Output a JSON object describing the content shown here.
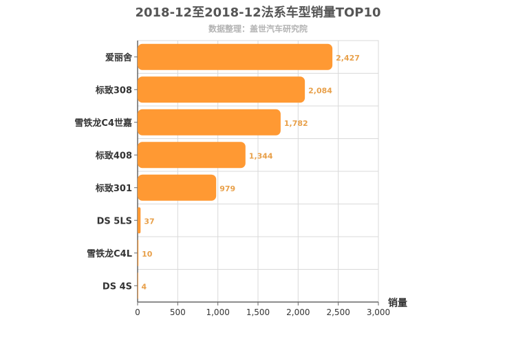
{
  "chart_data": {
    "type": "bar",
    "orientation": "horizontal",
    "title": "2018-12至2018-12法系车型销量TOP10",
    "subtitle": "数据整理：盖世汽车研究院",
    "xlabel": "销量",
    "ylabel": "",
    "categories": [
      "爱丽舍",
      "标致308",
      "雪铁龙C4世嘉",
      "标致408",
      "标致301",
      "DS 5LS",
      "雪铁龙C4L",
      "DS 4S"
    ],
    "values": [
      2427,
      2084,
      1782,
      1344,
      979,
      37,
      10,
      4
    ],
    "value_labels": [
      "2,427",
      "2,084",
      "1,782",
      "1,344",
      "979",
      "37",
      "10",
      "4"
    ],
    "xlim": [
      0,
      3000
    ],
    "xticks": [
      0,
      500,
      1000,
      1500,
      2000,
      2500,
      3000
    ],
    "xtick_labels": [
      "0",
      "500",
      "1,000",
      "1,500",
      "2,000",
      "2,500",
      "3,000"
    ],
    "grid": true,
    "colors": {
      "bar": "#ff9933",
      "data_label": "#e8a04a",
      "grid": "#d9d9d9",
      "axis": "#666666"
    }
  }
}
